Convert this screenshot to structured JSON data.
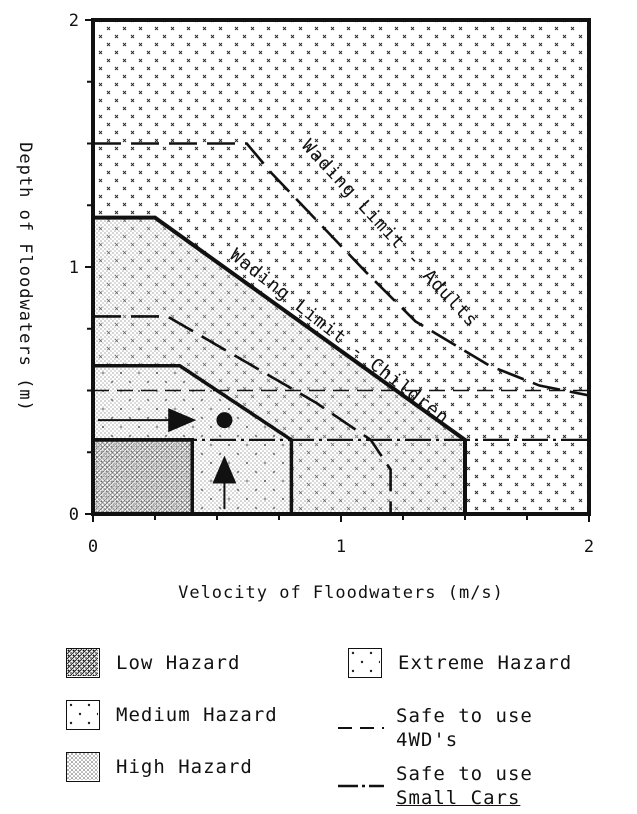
{
  "chart_data": {
    "type": "area",
    "xlabel": "Velocity of Floodwaters (m/s)",
    "ylabel": "Depth of Floodwaters (m)",
    "xlim": [
      0,
      2
    ],
    "ylim": [
      0,
      2
    ],
    "xticks": [
      "0",
      "1",
      "2"
    ],
    "yticks": [
      "0",
      "1",
      "2"
    ],
    "regions": [
      {
        "name": "Extreme Hazard",
        "pattern": "crosses",
        "boundary": [
          [
            0,
            1.2
          ],
          [
            0.25,
            1.2
          ],
          [
            1.5,
            0.3
          ],
          [
            1.5,
            0
          ]
        ]
      },
      {
        "name": "High Hazard",
        "pattern": "fine-dots",
        "boundary": [
          [
            0,
            0.6
          ],
          [
            0.35,
            0.6
          ],
          [
            0.8,
            0.3
          ],
          [
            0.8,
            0
          ]
        ]
      },
      {
        "name": "Medium Hazard",
        "pattern": "sparse-dots",
        "boundary": [
          [
            0,
            0.3
          ],
          [
            0.4,
            0.3
          ],
          [
            0.4,
            0
          ]
        ]
      },
      {
        "name": "Low Hazard",
        "pattern": "dense-dots",
        "boundary": []
      }
    ],
    "lines": [
      {
        "label": "Wading Limit - Adults",
        "style": "long-dash",
        "points": [
          [
            0,
            1.5
          ],
          [
            0.62,
            1.5
          ],
          [
            0.72,
            1.38
          ],
          [
            1.1,
            0.98
          ],
          [
            1.3,
            0.78
          ],
          [
            1.6,
            0.6
          ],
          [
            1.8,
            0.52
          ],
          [
            2,
            0.48
          ]
        ]
      },
      {
        "label": "Wading Limit - Children",
        "style": "long-dash",
        "points": [
          [
            0,
            0.8
          ],
          [
            0.3,
            0.8
          ],
          [
            0.9,
            0.45
          ],
          [
            1.12,
            0.3
          ],
          [
            1.2,
            0.18
          ],
          [
            1.2,
            0
          ]
        ]
      },
      {
        "label": "Safe to use 4WD's",
        "style": "dash",
        "y": 0.5,
        "x_range": [
          0,
          2
        ]
      },
      {
        "label": "Safe to use Small Cars",
        "style": "dash-dot",
        "y": 0.3,
        "x_range": [
          0,
          2
        ]
      }
    ],
    "annotation_point": {
      "x": 0.53,
      "y": 0.38
    },
    "annotations": [
      "Wading Limit - Adults",
      "Wading Limit - Children"
    ],
    "legend": {
      "placement": "bottom",
      "items": [
        {
          "label": "Low Hazard",
          "kind": "dense-dots"
        },
        {
          "label": "Extreme Hazard",
          "kind": "crosses"
        },
        {
          "label": "Medium Hazard",
          "kind": "sparse-dots"
        },
        {
          "label": "Safe to use 4WD's",
          "kind": "dash",
          "lines": [
            "Safe to use",
            "4WD's"
          ]
        },
        {
          "label": "High Hazard",
          "kind": "fine-dots"
        },
        {
          "label": "Safe to use Small Cars",
          "kind": "dash-dot",
          "lines": [
            "Safe to use",
            "Small Cars"
          ]
        }
      ]
    }
  }
}
